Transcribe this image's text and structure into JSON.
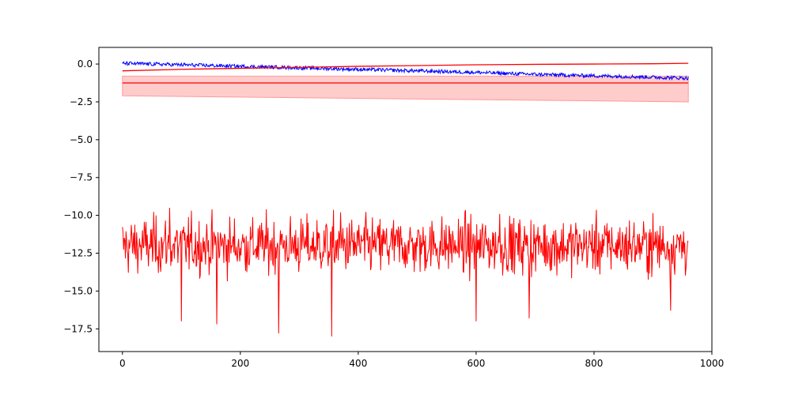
{
  "chart_data": {
    "type": "line",
    "title": "",
    "xlabel": "",
    "ylabel": "",
    "xlim": [
      -40,
      1000
    ],
    "ylim": [
      -19,
      1.1
    ],
    "grid": false,
    "legend": "none",
    "x_ticks": [
      0,
      200,
      400,
      600,
      800,
      1000
    ],
    "x_tick_labels": [
      "0",
      "200",
      "400",
      "600",
      "800",
      "1000"
    ],
    "y_ticks": [
      0.0,
      -2.5,
      -5.0,
      -7.5,
      -10.0,
      -12.5,
      -15.0,
      -17.5
    ],
    "y_tick_labels": [
      "0.0",
      "−2.5",
      "−5.0",
      "−7.5",
      "−10.0",
      "−12.5",
      "−15.0",
      "−17.5"
    ],
    "colors": {
      "noisy_series": "#ff0000",
      "blue_series": "#0000ff",
      "band_fill": "#ffcccc",
      "band_edge": "#ff9999",
      "trend_line": "#ff0000"
    },
    "series": [
      {
        "key": "blue_trace",
        "color": "#0000ff",
        "x": [
          0,
          50,
          100,
          150,
          200,
          250,
          300,
          350,
          400,
          450,
          500,
          550,
          600,
          650,
          700,
          750,
          800,
          850,
          900,
          960
        ],
        "y": [
          0.05,
          0.0,
          -0.05,
          -0.1,
          -0.15,
          -0.2,
          -0.25,
          -0.3,
          -0.35,
          -0.4,
          -0.45,
          -0.5,
          -0.55,
          -0.62,
          -0.68,
          -0.73,
          -0.78,
          -0.82,
          -0.87,
          -0.93
        ],
        "noise_amplitude": 0.12
      },
      {
        "key": "rising_red_line",
        "color": "#ff0000",
        "x": [
          0,
          100,
          200,
          300,
          400,
          500,
          600,
          700,
          800,
          900,
          960
        ],
        "y": [
          -0.45,
          -0.35,
          -0.28,
          -0.22,
          -0.15,
          -0.1,
          -0.05,
          -0.02,
          0.0,
          0.02,
          0.05
        ]
      },
      {
        "key": "flat_red_line",
        "color": "#ff0000",
        "x": [
          0,
          960
        ],
        "y": [
          -1.25,
          -1.25
        ]
      },
      {
        "key": "shaded_band",
        "color": "#ffcccc",
        "x": [
          0,
          960
        ],
        "upper": [
          -0.8,
          -0.8
        ],
        "lower": [
          -2.1,
          -2.5
        ]
      },
      {
        "key": "noisy_red_trace",
        "color": "#ff0000",
        "x_range": [
          0,
          960
        ],
        "baseline": -12.0,
        "noise_amplitude": 1.3,
        "spikes": [
          {
            "x": 80,
            "y": -9.5
          },
          {
            "x": 100,
            "y": -17.0
          },
          {
            "x": 160,
            "y": -17.2
          },
          {
            "x": 265,
            "y": -17.8
          },
          {
            "x": 355,
            "y": -18.0
          },
          {
            "x": 600,
            "y": -17.0
          },
          {
            "x": 690,
            "y": -16.8
          },
          {
            "x": 930,
            "y": -16.3
          },
          {
            "x": 370,
            "y": -9.8
          },
          {
            "x": 640,
            "y": -9.9
          }
        ]
      }
    ]
  }
}
